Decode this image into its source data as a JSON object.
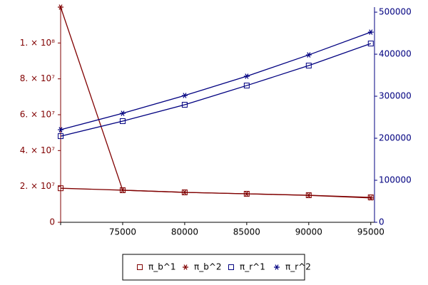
{
  "chart_data": {
    "type": "line",
    "x": [
      70000,
      75000,
      80000,
      85000,
      90000,
      95000
    ],
    "xlim": [
      70000,
      95300
    ],
    "xticks": [
      75000,
      80000,
      85000,
      90000,
      95000
    ],
    "ylim": [
      0,
      120000000
    ],
    "yticks": [
      0,
      {
        "value": 20000000,
        "label": "2. × 10⁷"
      },
      {
        "value": 40000000,
        "label": "4. × 10⁷"
      },
      {
        "value": 60000000,
        "label": "6. × 10⁷"
      },
      {
        "value": 80000000,
        "label": "8. × 10⁷"
      },
      {
        "value": 100000000,
        "label": "1. × 10⁸"
      }
    ],
    "y2lim": [
      0,
      512000
    ],
    "y2ticks": [
      0,
      100000,
      200000,
      300000,
      400000,
      500000
    ],
    "left_axis_color": "#800000",
    "right_axis_color": "#000080",
    "series": [
      {
        "name": "π_b^1",
        "color": "#800000",
        "marker": "square",
        "values": [
          19000000,
          17900000,
          16700000,
          15900000,
          15100000,
          13900000
        ]
      },
      {
        "name": "π_b^2",
        "color": "#800000",
        "marker": "star",
        "values": [
          120000000,
          17900000,
          16700000,
          15900000,
          15000000,
          13600000
        ]
      },
      {
        "name": "π_r^1",
        "color": "#000080",
        "marker": "square",
        "axis": "y2",
        "values": [
          205000,
          240700,
          279700,
          325400,
          372900,
          425400
        ]
      },
      {
        "name": "π_r^2",
        "color": "#000080",
        "marker": "star",
        "axis": "y2",
        "values": [
          220300,
          259300,
          301700,
          347500,
          398300,
          452500
        ]
      }
    ]
  }
}
